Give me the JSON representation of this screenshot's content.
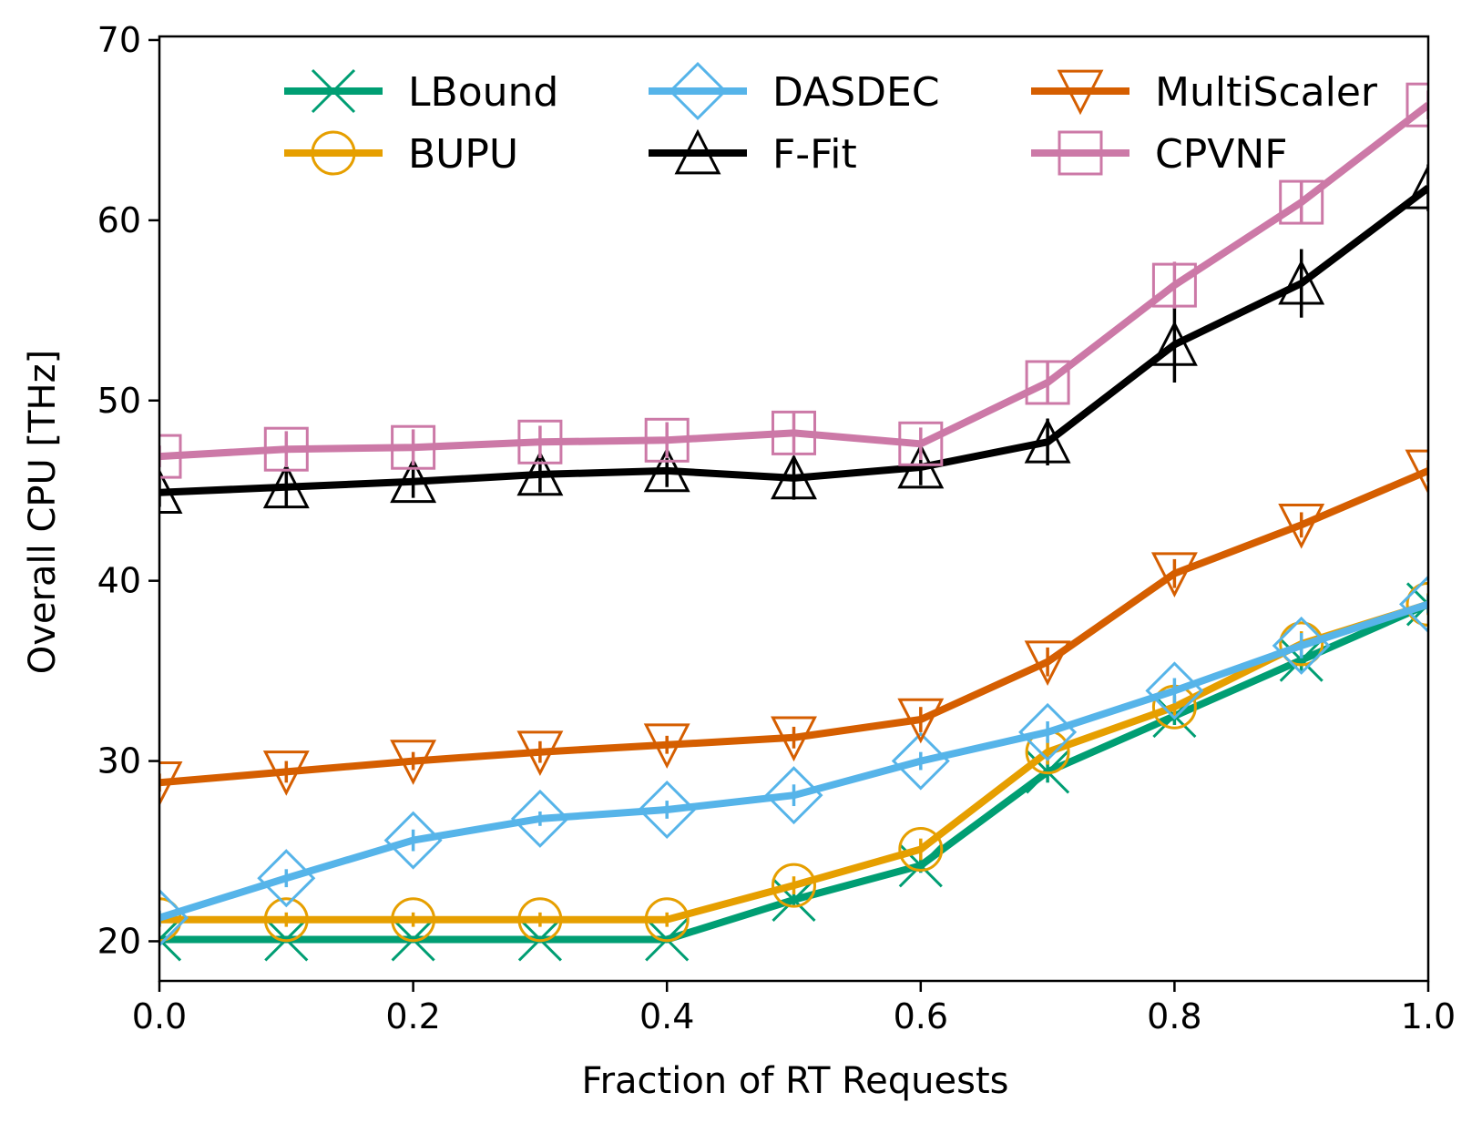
{
  "chart_data": {
    "type": "line",
    "title": "",
    "xlabel": "Fraction of RT Requests",
    "ylabel": "Overall CPU [THz]",
    "xlim": [
      0.0,
      1.0
    ],
    "ylim": [
      17.8,
      70.2
    ],
    "xticks": [
      0.0,
      0.2,
      0.4,
      0.6,
      0.8,
      1.0
    ],
    "xtick_labels": [
      "0.0",
      "0.2",
      "0.4",
      "0.6",
      "0.8",
      "1.0"
    ],
    "yticks": [
      20,
      30,
      40,
      50,
      60,
      70
    ],
    "ytick_labels": [
      "20",
      "30",
      "40",
      "50",
      "60",
      "70"
    ],
    "grid": false,
    "legend_position": "top",
    "x": [
      0.0,
      0.1,
      0.2,
      0.3,
      0.4,
      0.5,
      0.6,
      0.7,
      0.8,
      0.9,
      1.0
    ],
    "series": [
      {
        "name": "LBound",
        "color": "#009e73",
        "marker": "x",
        "values": [
          20.1,
          20.1,
          20.1,
          20.1,
          20.1,
          22.3,
          24.2,
          29.4,
          32.5,
          35.6,
          38.7
        ],
        "errors": [
          0,
          0,
          0,
          0,
          0,
          0.3,
          0.4,
          0.6,
          0.5,
          0.6,
          0.5
        ]
      },
      {
        "name": "BUPU",
        "color": "#e69f00",
        "marker": "circle",
        "values": [
          21.2,
          21.2,
          21.2,
          21.2,
          21.2,
          23.1,
          25.1,
          30.5,
          33.0,
          36.5,
          38.7
        ],
        "errors": [
          0.4,
          0.4,
          0.4,
          0.4,
          0.4,
          0.5,
          0.6,
          0.7,
          0.6,
          0.7,
          0.6
        ]
      },
      {
        "name": "DASDEC",
        "color": "#56b4e9",
        "marker": "diamond",
        "values": [
          21.3,
          23.5,
          25.6,
          26.8,
          27.3,
          28.1,
          30.0,
          31.6,
          33.9,
          36.4,
          38.7
        ],
        "errors": [
          0.4,
          0.5,
          0.6,
          0.4,
          0.5,
          0.6,
          0.5,
          0.6,
          0.7,
          0.7,
          0.5
        ]
      },
      {
        "name": "F-Fit",
        "color": "#000000",
        "marker": "triangle-up",
        "values": [
          44.9,
          45.2,
          45.5,
          45.9,
          46.1,
          45.7,
          46.3,
          47.7,
          53.1,
          56.5,
          61.8
        ],
        "errors": [
          0.8,
          1.1,
          0.9,
          1.0,
          0.9,
          1.2,
          1.0,
          1.3,
          2.1,
          1.9,
          1.3
        ]
      },
      {
        "name": "MultiScaler",
        "color": "#d55e00",
        "marker": "triangle-down",
        "values": [
          28.8,
          29.4,
          30.0,
          30.5,
          30.9,
          31.3,
          32.3,
          35.5,
          40.4,
          43.1,
          46.1
        ],
        "errors": [
          0.5,
          0.6,
          0.5,
          0.6,
          0.5,
          0.6,
          0.7,
          0.8,
          0.8,
          0.7,
          0.6
        ]
      },
      {
        "name": "CPVNF",
        "color": "#cc79a7",
        "marker": "square",
        "values": [
          46.9,
          47.3,
          47.4,
          47.7,
          47.8,
          48.2,
          47.6,
          51.0,
          56.4,
          61.0,
          66.4
        ],
        "errors": [
          0.6,
          1.0,
          1.0,
          0.9,
          1.0,
          1.1,
          0.9,
          1.2,
          1.3,
          1.2,
          0.8
        ]
      }
    ]
  }
}
